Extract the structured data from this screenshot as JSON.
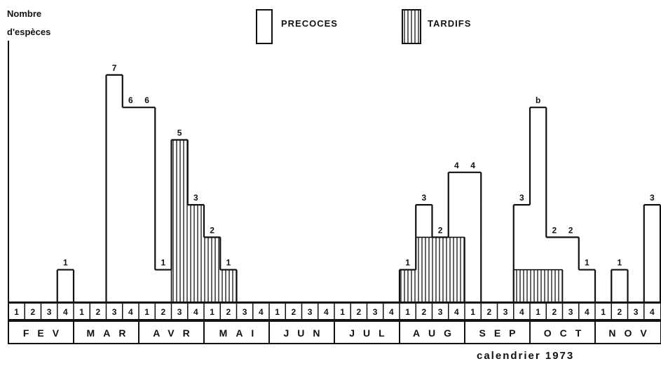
{
  "chart_data": {
    "type": "bar",
    "ylabel_line1": "Nombre",
    "ylabel_line2": "d'espèces",
    "xlabel": "calendrier 1973",
    "legend_position": "top",
    "legend": [
      {
        "name": "PRECOCES",
        "pattern": "empty"
      },
      {
        "name": "TARDIFS",
        "pattern": "vertical-hatch"
      }
    ],
    "months": [
      "FEV",
      "MAR",
      "AVR",
      "MAI",
      "JUN",
      "JUL",
      "AUG",
      "SEP",
      "OCT",
      "NOV"
    ],
    "weeks": [
      "1",
      "2",
      "3",
      "4"
    ],
    "ylim": [
      0,
      7
    ],
    "series": [
      {
        "name": "PRECOCES",
        "color": "#111111",
        "pattern": "empty",
        "values": [
          0,
          0,
          0,
          1,
          0,
          0,
          7,
          6,
          6,
          1,
          5,
          3,
          2,
          1,
          0,
          0,
          0,
          0,
          0,
          0,
          0,
          0,
          0,
          0,
          1,
          3,
          2,
          4,
          4,
          0,
          0,
          3,
          6,
          2,
          2,
          1,
          0,
          1,
          0,
          3
        ]
      },
      {
        "name": "TARDIFS",
        "color": "#111111",
        "pattern": "vertical-hatch",
        "values": [
          0,
          0,
          0,
          0,
          0,
          0,
          0,
          0,
          0,
          0,
          5,
          3,
          2,
          1,
          0,
          0,
          0,
          0,
          0,
          0,
          0,
          0,
          0,
          0,
          1,
          2,
          2,
          2,
          0,
          0,
          0,
          1,
          1,
          1,
          0,
          0,
          0,
          0,
          0,
          0
        ]
      }
    ],
    "data_labels": [
      "1",
      "7",
      "6",
      "6",
      "1",
      "5",
      "3",
      "2",
      "1",
      "1",
      "3",
      "2",
      "4",
      "4",
      "3",
      "b",
      "2",
      "2",
      "1",
      "1",
      "3"
    ],
    "grid": false
  }
}
